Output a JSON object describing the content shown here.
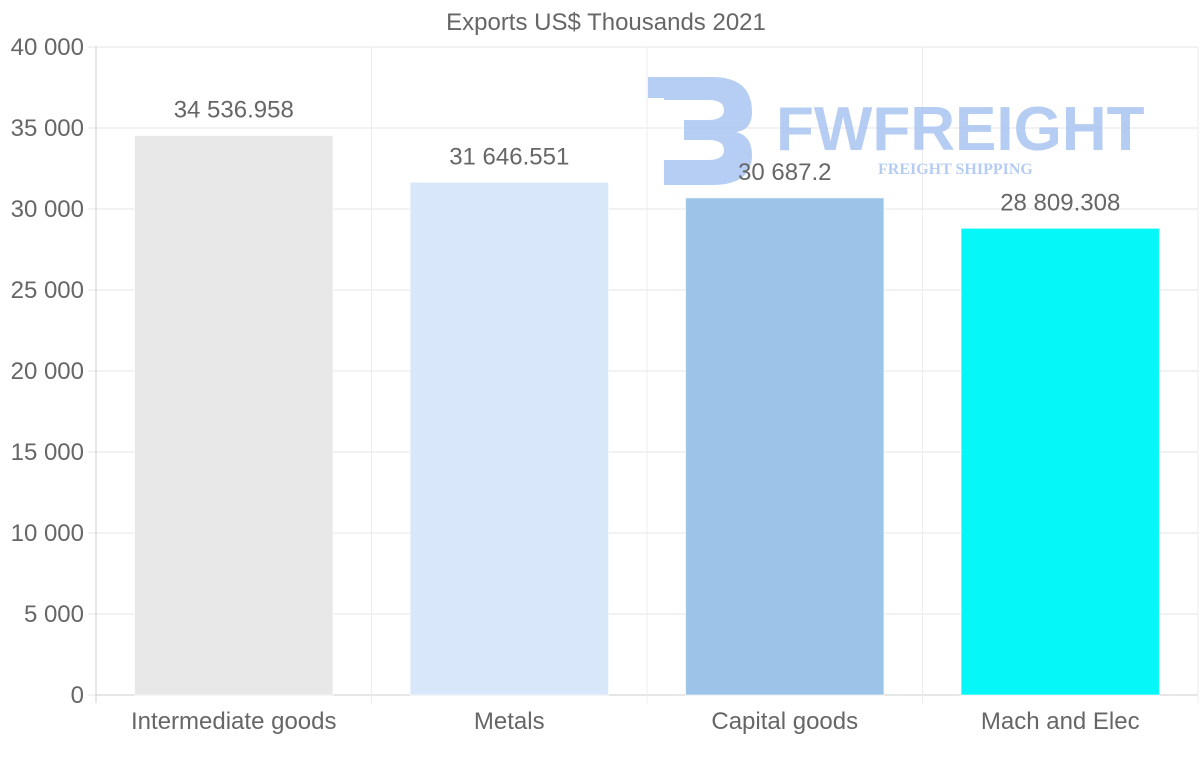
{
  "chart_data": {
    "type": "bar",
    "title": "Exports US$ Thousands 2021",
    "xlabel": "",
    "ylabel": "",
    "categories": [
      "Intermediate goods",
      "Metals",
      "Capital goods",
      "Mach and Elec"
    ],
    "values": [
      34536.958,
      31646.551,
      30687.2,
      28809.308
    ],
    "value_labels": [
      "34 536.958",
      "31 646.551",
      "30 687.2",
      "28 809.308"
    ],
    "colors": [
      "#e8e8e8",
      "#d8e8fa",
      "#9bc4e8",
      "#05f7f7"
    ],
    "ylim": [
      0,
      40000
    ],
    "yticks": [
      0,
      5000,
      10000,
      15000,
      20000,
      25000,
      30000,
      35000,
      40000
    ],
    "ytick_labels": [
      "0",
      "5 000",
      "10 000",
      "15 000",
      "20 000",
      "25 000",
      "30 000",
      "35 000",
      "40 000"
    ],
    "grid": true,
    "legend": "none"
  },
  "watermark": {
    "brand": "FWFREIGHT",
    "tagline": "FREIGHT SHIPPING",
    "color": "#a9c4f2"
  }
}
